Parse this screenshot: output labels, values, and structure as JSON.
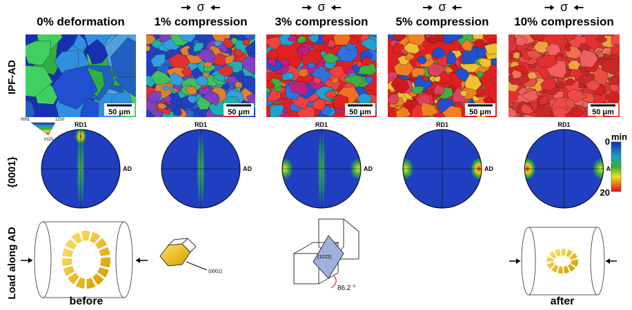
{
  "columns": [
    {
      "title": "0% deformation"
    },
    {
      "title": "1% compression",
      "load": "σ"
    },
    {
      "title": "3% compression",
      "load": "σ"
    },
    {
      "title": "5% compression",
      "load": "σ"
    },
    {
      "title": "10% compression",
      "load": "σ"
    }
  ],
  "rows": {
    "ipf": "IPF-AD",
    "pole": "{0001}",
    "load": "Load along AD"
  },
  "scale_bar": "50 μm",
  "ipf_key": {
    "top": "0001",
    "right": "12̄10",
    "bottom": "011̄0"
  },
  "pole_labels": {
    "top": "RD1",
    "right": "AD"
  },
  "colorbar": {
    "label": "min",
    "ticks": [
      0,
      20
    ]
  },
  "schematics": {
    "before": "before",
    "after": "after",
    "axis": "(0001)",
    "plane": "{101̄2}",
    "angle": "86.2 °"
  }
}
